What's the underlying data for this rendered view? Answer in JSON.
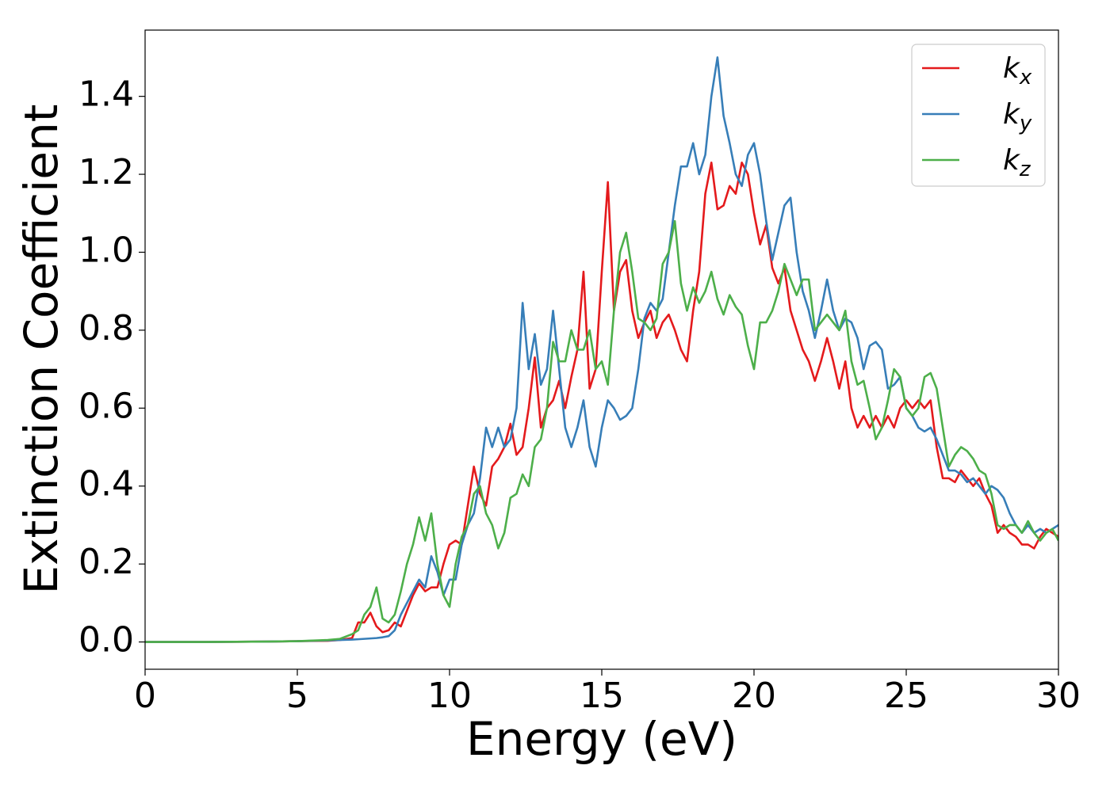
{
  "chart_data": {
    "type": "line",
    "xlabel": "Energy (eV)",
    "ylabel": "Extinction Coefficient",
    "xlim": [
      0,
      30
    ],
    "ylim": [
      -0.07,
      1.57
    ],
    "xticks": [
      0,
      5,
      10,
      15,
      20,
      25,
      30
    ],
    "yticks": [
      {
        "value": 0,
        "label": "0.0"
      },
      0.2,
      0.4,
      0.6,
      0.8,
      {
        "value": 1,
        "label": "1.0"
      },
      1.2,
      1.4
    ],
    "legend": "upper right",
    "grid": false,
    "x": [
      0,
      2,
      4,
      5,
      6,
      6.4,
      6.8,
      7,
      7.2,
      7.4,
      7.6,
      7.8,
      8,
      8.2,
      8.4,
      8.6,
      8.8,
      9,
      9.2,
      9.4,
      9.6,
      9.8,
      10,
      10.2,
      10.4,
      10.6,
      10.8,
      11,
      11.2,
      11.4,
      11.6,
      11.8,
      12,
      12.2,
      12.4,
      12.6,
      12.8,
      13,
      13.2,
      13.4,
      13.6,
      13.8,
      14,
      14.2,
      14.4,
      14.6,
      14.8,
      15,
      15.2,
      15.4,
      15.6,
      15.8,
      16,
      16.2,
      16.4,
      16.6,
      16.8,
      17,
      17.2,
      17.4,
      17.6,
      17.8,
      18,
      18.2,
      18.4,
      18.6,
      18.8,
      19,
      19.2,
      19.4,
      19.6,
      19.8,
      20,
      20.2,
      20.4,
      20.6,
      20.8,
      21,
      21.2,
      21.4,
      21.6,
      21.8,
      22,
      22.2,
      22.4,
      22.6,
      22.8,
      23,
      23.2,
      23.4,
      23.6,
      23.8,
      24,
      24.2,
      24.4,
      24.6,
      24.8,
      25,
      25.2,
      25.4,
      25.6,
      25.8,
      26,
      26.2,
      26.4,
      26.6,
      26.8,
      27,
      27.2,
      27.4,
      27.6,
      27.8,
      28,
      28.2,
      28.4,
      28.6,
      28.8,
      29,
      29.2,
      29.4,
      29.6,
      29.8,
      30
    ],
    "series": [
      {
        "name": "kx",
        "color": "#e41a1c",
        "values": [
          0,
          0,
          0.001,
          0.002,
          0.003,
          0.005,
          0.01,
          0.05,
          0.05,
          0.075,
          0.04,
          0.025,
          0.03,
          0.05,
          0.04,
          0.08,
          0.12,
          0.15,
          0.13,
          0.14,
          0.14,
          0.2,
          0.25,
          0.26,
          0.25,
          0.35,
          0.45,
          0.38,
          0.35,
          0.45,
          0.47,
          0.5,
          0.56,
          0.48,
          0.5,
          0.6,
          0.73,
          0.55,
          0.6,
          0.62,
          0.67,
          0.6,
          0.68,
          0.75,
          0.95,
          0.65,
          0.7,
          0.95,
          1.18,
          0.85,
          0.95,
          0.98,
          0.85,
          0.78,
          0.82,
          0.85,
          0.78,
          0.82,
          0.84,
          0.8,
          0.75,
          0.72,
          0.85,
          0.95,
          1.15,
          1.23,
          1.11,
          1.12,
          1.17,
          1.15,
          1.23,
          1.2,
          1.1,
          1.02,
          1.07,
          0.96,
          0.92,
          0.96,
          0.85,
          0.8,
          0.75,
          0.72,
          0.67,
          0.72,
          0.78,
          0.72,
          0.65,
          0.72,
          0.6,
          0.55,
          0.58,
          0.55,
          0.58,
          0.55,
          0.58,
          0.55,
          0.6,
          0.62,
          0.6,
          0.62,
          0.6,
          0.62,
          0.5,
          0.42,
          0.42,
          0.41,
          0.44,
          0.42,
          0.4,
          0.42,
          0.38,
          0.35,
          0.28,
          0.3,
          0.28,
          0.27,
          0.25,
          0.25,
          0.24,
          0.27,
          0.29,
          0.28,
          0.27
        ]
      },
      {
        "name": "ky",
        "color": "#377eb8",
        "values": [
          0,
          0,
          0.001,
          0.002,
          0.004,
          0.005,
          0.006,
          0.007,
          0.008,
          0.009,
          0.01,
          0.012,
          0.015,
          0.03,
          0.07,
          0.1,
          0.13,
          0.16,
          0.14,
          0.22,
          0.18,
          0.12,
          0.16,
          0.16,
          0.25,
          0.3,
          0.33,
          0.42,
          0.55,
          0.5,
          0.55,
          0.5,
          0.52,
          0.6,
          0.87,
          0.7,
          0.79,
          0.66,
          0.7,
          0.85,
          0.7,
          0.55,
          0.5,
          0.55,
          0.62,
          0.5,
          0.45,
          0.55,
          0.62,
          0.6,
          0.57,
          0.58,
          0.6,
          0.7,
          0.83,
          0.87,
          0.85,
          0.88,
          1.0,
          1.12,
          1.22,
          1.22,
          1.28,
          1.2,
          1.25,
          1.4,
          1.5,
          1.35,
          1.28,
          1.2,
          1.17,
          1.25,
          1.28,
          1.2,
          1.08,
          0.98,
          1.05,
          1.12,
          1.14,
          1.0,
          0.9,
          0.85,
          0.78,
          0.85,
          0.93,
          0.85,
          0.8,
          0.83,
          0.82,
          0.78,
          0.7,
          0.76,
          0.77,
          0.75,
          0.65,
          0.66,
          0.68,
          0.6,
          0.58,
          0.55,
          0.54,
          0.55,
          0.52,
          0.48,
          0.44,
          0.44,
          0.43,
          0.41,
          0.42,
          0.4,
          0.38,
          0.4,
          0.39,
          0.37,
          0.33,
          0.3,
          0.28,
          0.3,
          0.28,
          0.29,
          0.28,
          0.29,
          0.3
        ]
      },
      {
        "name": "kz",
        "color": "#4daf4a",
        "values": [
          0,
          0,
          0.001,
          0.002,
          0.005,
          0.008,
          0.02,
          0.03,
          0.07,
          0.09,
          0.14,
          0.06,
          0.05,
          0.07,
          0.13,
          0.2,
          0.25,
          0.32,
          0.26,
          0.33,
          0.2,
          0.12,
          0.09,
          0.2,
          0.27,
          0.3,
          0.38,
          0.4,
          0.33,
          0.3,
          0.24,
          0.28,
          0.37,
          0.38,
          0.43,
          0.4,
          0.5,
          0.52,
          0.6,
          0.77,
          0.72,
          0.72,
          0.8,
          0.75,
          0.75,
          0.8,
          0.7,
          0.72,
          0.66,
          0.85,
          1.0,
          1.05,
          0.95,
          0.83,
          0.82,
          0.8,
          0.83,
          0.97,
          1.0,
          1.08,
          0.92,
          0.85,
          0.91,
          0.87,
          0.9,
          0.95,
          0.88,
          0.84,
          0.89,
          0.86,
          0.84,
          0.76,
          0.7,
          0.82,
          0.82,
          0.85,
          0.9,
          0.97,
          0.93,
          0.89,
          0.93,
          0.93,
          0.8,
          0.82,
          0.84,
          0.82,
          0.8,
          0.85,
          0.72,
          0.66,
          0.67,
          0.6,
          0.52,
          0.55,
          0.62,
          0.7,
          0.68,
          0.6,
          0.58,
          0.6,
          0.68,
          0.69,
          0.65,
          0.55,
          0.45,
          0.48,
          0.5,
          0.49,
          0.47,
          0.44,
          0.43,
          0.38,
          0.3,
          0.29,
          0.3,
          0.3,
          0.28,
          0.31,
          0.28,
          0.26,
          0.28,
          0.29,
          0.26
        ]
      }
    ]
  }
}
